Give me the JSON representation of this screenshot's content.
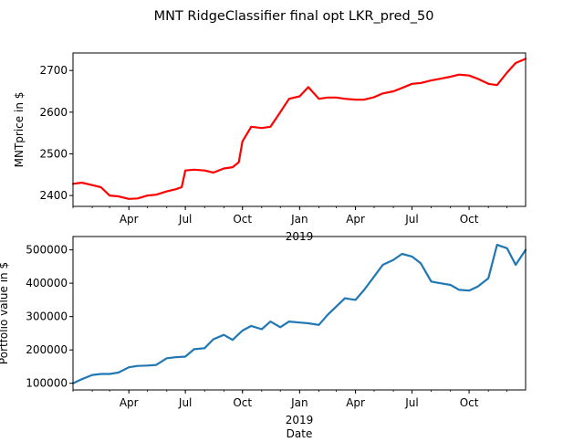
{
  "figure": {
    "title": "MNT RidgeClassifier final opt LKR_pred_50"
  },
  "chart_data": [
    {
      "type": "line",
      "ylabel": "MNTprice in $",
      "xlabel": "",
      "xlim": [
        "2018-01-01",
        "2019-12-31"
      ],
      "ylim": [
        2374,
        2742
      ],
      "yticks": [
        2400,
        2500,
        2600,
        2700
      ],
      "ytick_labels": [
        "2400",
        "2500",
        "2600",
        "2700"
      ],
      "xticks": [
        "2018-04-01",
        "2018-07-01",
        "2018-10-01",
        "2019-01-01",
        "2019-04-01",
        "2019-07-01",
        "2019-10-01"
      ],
      "xtick_labels": [
        "Apr",
        "Jul",
        "Oct",
        "Jan",
        "Apr",
        "Jul",
        "Oct"
      ],
      "year_label": "2019",
      "grid": false,
      "series": [
        {
          "color": "#ff0000",
          "x": [
            "2018-01-01",
            "2018-01-15",
            "2018-02-01",
            "2018-02-15",
            "2018-03-01",
            "2018-03-15",
            "2018-04-01",
            "2018-04-15",
            "2018-05-01",
            "2018-05-15",
            "2018-06-01",
            "2018-06-15",
            "2018-06-25",
            "2018-07-01",
            "2018-07-15",
            "2018-08-01",
            "2018-08-15",
            "2018-09-01",
            "2018-09-15",
            "2018-09-25",
            "2018-10-01",
            "2018-10-15",
            "2018-11-01",
            "2018-11-15",
            "2018-12-01",
            "2018-12-15",
            "2019-01-01",
            "2019-01-15",
            "2019-02-01",
            "2019-02-15",
            "2019-03-01",
            "2019-03-15",
            "2019-04-01",
            "2019-04-15",
            "2019-05-01",
            "2019-05-15",
            "2019-06-01",
            "2019-06-15",
            "2019-07-01",
            "2019-07-15",
            "2019-08-01",
            "2019-08-15",
            "2019-09-01",
            "2019-09-15",
            "2019-10-01",
            "2019-10-15",
            "2019-11-01",
            "2019-11-15",
            "2019-12-01",
            "2019-12-15",
            "2019-12-31"
          ],
          "values": [
            2428,
            2431,
            2425,
            2420,
            2400,
            2398,
            2392,
            2393,
            2400,
            2402,
            2410,
            2415,
            2420,
            2460,
            2462,
            2460,
            2455,
            2465,
            2468,
            2480,
            2530,
            2565,
            2562,
            2565,
            2600,
            2632,
            2638,
            2660,
            2632,
            2635,
            2635,
            2632,
            2630,
            2630,
            2636,
            2645,
            2650,
            2658,
            2668,
            2670,
            2676,
            2680,
            2685,
            2690,
            2688,
            2680,
            2668,
            2665,
            2695,
            2718,
            2728
          ]
        }
      ]
    },
    {
      "type": "line",
      "ylabel": "Portfolio value in $",
      "xlabel": "Date",
      "xlim": [
        "2018-01-01",
        "2019-12-31"
      ],
      "ylim": [
        80000,
        540000
      ],
      "yticks": [
        100000,
        200000,
        300000,
        400000,
        500000
      ],
      "ytick_labels": [
        "100000",
        "200000",
        "300000",
        "400000",
        "500000"
      ],
      "xticks": [
        "2018-04-01",
        "2018-07-01",
        "2018-10-01",
        "2019-01-01",
        "2019-04-01",
        "2019-07-01",
        "2019-10-01"
      ],
      "xtick_labels": [
        "Apr",
        "Jul",
        "Oct",
        "Jan",
        "Apr",
        "Jul",
        "Oct"
      ],
      "year_label": "2019",
      "grid": false,
      "series": [
        {
          "color": "#1f77b4",
          "x": [
            "2018-01-01",
            "2018-01-15",
            "2018-02-01",
            "2018-02-15",
            "2018-03-01",
            "2018-03-15",
            "2018-04-01",
            "2018-04-15",
            "2018-05-01",
            "2018-05-15",
            "2018-06-01",
            "2018-06-15",
            "2018-07-01",
            "2018-07-15",
            "2018-08-01",
            "2018-08-15",
            "2018-09-01",
            "2018-09-15",
            "2018-10-01",
            "2018-10-15",
            "2018-11-01",
            "2018-11-15",
            "2018-12-01",
            "2018-12-15",
            "2019-01-01",
            "2019-01-15",
            "2019-02-01",
            "2019-02-15",
            "2019-03-01",
            "2019-03-15",
            "2019-04-01",
            "2019-04-15",
            "2019-05-01",
            "2019-05-15",
            "2019-06-01",
            "2019-06-15",
            "2019-07-01",
            "2019-07-15",
            "2019-08-01",
            "2019-08-15",
            "2019-09-01",
            "2019-09-15",
            "2019-10-01",
            "2019-10-15",
            "2019-11-01",
            "2019-11-15",
            "2019-12-01",
            "2019-12-15",
            "2019-12-31"
          ],
          "values": [
            100000,
            112000,
            125000,
            128000,
            128000,
            132000,
            148000,
            152000,
            153000,
            155000,
            175000,
            178000,
            180000,
            202000,
            205000,
            232000,
            245000,
            230000,
            258000,
            272000,
            262000,
            285000,
            268000,
            285000,
            282000,
            280000,
            275000,
            305000,
            330000,
            355000,
            350000,
            380000,
            420000,
            455000,
            470000,
            488000,
            480000,
            460000,
            405000,
            400000,
            395000,
            380000,
            378000,
            390000,
            415000,
            515000,
            505000,
            455000,
            500000
          ]
        }
      ]
    }
  ]
}
